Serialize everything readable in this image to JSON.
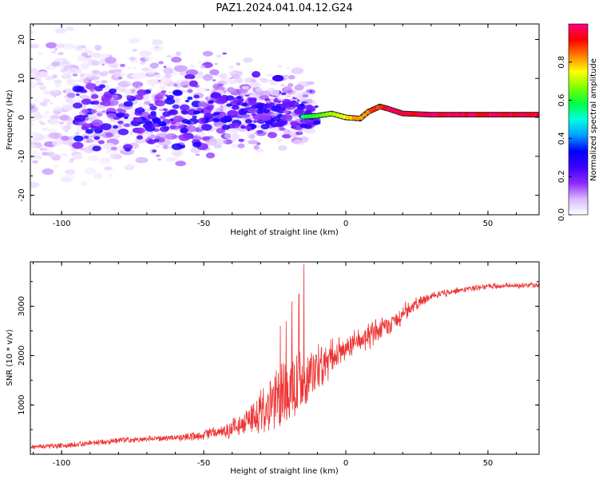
{
  "figure": {
    "title": "PAZ1.2024.041.04.12.G24"
  },
  "chart_data": [
    {
      "type": "heatmap",
      "title": "PAZ1.2024.041.04.12.G24",
      "xlabel": "Height of straight line (km)",
      "ylabel": "Frequency (Hz)",
      "xlim": [
        -111,
        68
      ],
      "ylim": [
        -25,
        24
      ],
      "x_ticks": [
        -100,
        -50,
        0,
        50
      ],
      "y_ticks": [
        -20,
        -10,
        0,
        10,
        20
      ],
      "grid": false,
      "colorbar": {
        "label": "Normalized spectral amplitude",
        "range": [
          0,
          1
        ],
        "ticks": [
          0.0,
          0.2,
          0.4,
          0.6,
          0.8
        ],
        "colors": [
          "#ffffff",
          "#d8b8ff",
          "#8c28ff",
          "#3c00ff",
          "#0000ff",
          "#00a0ff",
          "#00ffe0",
          "#00ff40",
          "#80ff00",
          "#ffff00",
          "#ff8000",
          "#ff0000",
          "#ff0080"
        ]
      },
      "features": {
        "main_tone": {
          "description_points": [
            [
              -15,
              0.2
            ],
            [
              -10,
              0.4
            ],
            [
              -5,
              1.0
            ],
            [
              0,
              0.0
            ],
            [
              5,
              -0.3
            ],
            [
              8,
              1.5
            ],
            [
              12,
              2.8
            ],
            [
              15,
              2.2
            ],
            [
              20,
              1.0
            ],
            [
              30,
              0.7
            ],
            [
              68,
              0.7
            ]
          ],
          "amplitude_from_x": -15,
          "amplitude_full_x": 15
        },
        "scatter_region_x": [
          -111,
          -12
        ],
        "scatter_region_y": [
          -25,
          24
        ]
      }
    },
    {
      "type": "line",
      "xlabel": "Height of straight line (km)",
      "ylabel": "SNR (10 * v/v)",
      "xlim": [
        -111,
        68
      ],
      "ylim": [
        0,
        3900
      ],
      "x_ticks": [
        -100,
        -50,
        0,
        50
      ],
      "y_ticks": [
        1000,
        2000,
        3000
      ],
      "grid": false,
      "color": "#ee3333",
      "trend": {
        "x": [
          -111,
          -100,
          -90,
          -80,
          -70,
          -60,
          -50,
          -40,
          -30,
          -25,
          -20,
          -15,
          -10,
          -5,
          0,
          5,
          10,
          15,
          20,
          25,
          30,
          40,
          50,
          60,
          68
        ],
        "y": [
          150,
          170,
          220,
          280,
          320,
          330,
          390,
          520,
          800,
          1000,
          1300,
          1500,
          1700,
          1950,
          2150,
          2300,
          2450,
          2600,
          2850,
          3050,
          3200,
          3330,
          3400,
          3420,
          3430
        ]
      },
      "noise_amplitude": {
        "x": [
          -111,
          -60,
          -45,
          -35,
          -25,
          -18,
          -12,
          -5,
          0,
          10,
          20,
          30,
          40,
          68
        ],
        "y": [
          60,
          80,
          150,
          350,
          700,
          900,
          650,
          400,
          320,
          300,
          220,
          100,
          70,
          60
        ]
      },
      "spikes": [
        {
          "x": -14.8,
          "y": 3850
        },
        {
          "x": -16.5,
          "y": 3250
        },
        {
          "x": -21,
          "y": 2700
        },
        {
          "x": -23,
          "y": 2600
        },
        {
          "x": -19,
          "y": 3100
        }
      ]
    }
  ]
}
